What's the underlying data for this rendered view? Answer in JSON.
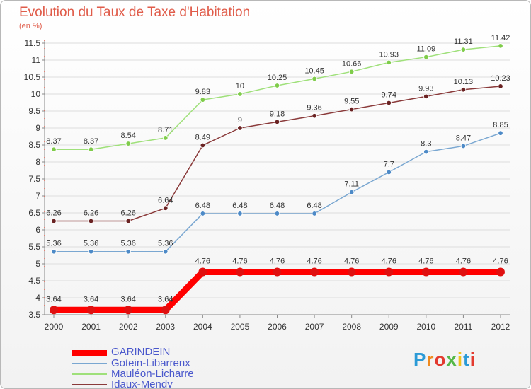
{
  "header": {
    "title": "Evolution du Taux de Taxe d'Habitation",
    "subtitle": "(en %)"
  },
  "logo": {
    "text": "Proxiti",
    "colors": [
      "#2b9ad6",
      "#f08a1e",
      "#e33a2f",
      "#55b848",
      "#f2c21b",
      "#2b9ad6",
      "#e33a2f"
    ]
  },
  "chart_data": {
    "type": "line",
    "categories": [
      "2000",
      "2001",
      "2002",
      "2003",
      "2004",
      "2005",
      "2006",
      "2007",
      "2008",
      "2009",
      "2010",
      "2011",
      "2012"
    ],
    "ylim": [
      3.5,
      11.5
    ],
    "yticks": [
      "3.5",
      "4",
      "4.5",
      "5",
      "5.5",
      "6",
      "6.5",
      "7",
      "7.5",
      "8",
      "8.5",
      "9",
      "9.5",
      "10",
      "10.5",
      "11",
      "11.5"
    ],
    "grid": "horizontal",
    "legend": "bottom-left",
    "series": [
      {
        "name": "GARINDEIN",
        "color": "#ff0000",
        "marker": "#e01010",
        "width": 9,
        "r": 6,
        "values": [
          3.64,
          3.64,
          3.64,
          3.64,
          4.76,
          4.76,
          4.76,
          4.76,
          4.76,
          4.76,
          4.76,
          4.76,
          4.76
        ],
        "labels": [
          "3.64",
          "3.64",
          "3.64",
          "3.64",
          "4.76",
          "4.76",
          "4.76",
          "4.76",
          "4.76",
          "4.76",
          "4.76",
          "4.76",
          "4.76"
        ]
      },
      {
        "name": "Gotein-Libarrenx",
        "color": "#7aa7d1",
        "marker": "#4d8ac7",
        "width": 1.5,
        "r": 3.3,
        "values": [
          5.36,
          5.36,
          5.36,
          5.36,
          6.48,
          6.48,
          6.48,
          6.48,
          7.11,
          7.7,
          8.3,
          8.47,
          8.85
        ],
        "labels": [
          "5.36",
          "5.36",
          "5.36",
          "5.36",
          "6.48",
          "6.48",
          "6.48",
          "6.48",
          "7.11",
          "7.7",
          "8.3",
          "8.47",
          "8.85"
        ]
      },
      {
        "name": "Mauléon-Licharre",
        "color": "#9fe07a",
        "marker": "#7fcc4a",
        "width": 1.5,
        "r": 3.3,
        "values": [
          8.37,
          8.37,
          8.54,
          8.71,
          9.83,
          10,
          10.25,
          10.45,
          10.66,
          10.93,
          11.09,
          11.31,
          11.42
        ],
        "labels": [
          "8.37",
          "8.37",
          "8.54",
          "8.71",
          "9.83",
          "10",
          "10.25",
          "10.45",
          "10.66",
          "10.93",
          "11.09",
          "11.31",
          "11.42"
        ]
      },
      {
        "name": "Idaux-Mendy",
        "color": "#8a3a3a",
        "marker": "#6a2222",
        "width": 1.5,
        "r": 3.3,
        "values": [
          6.26,
          6.26,
          6.26,
          6.64,
          8.49,
          9,
          9.18,
          9.36,
          9.55,
          9.74,
          9.93,
          10.13,
          10.23
        ],
        "labels": [
          "6.26",
          "6.26",
          "6.26",
          "6.64",
          "8.49",
          "9",
          "9.18",
          "9.36",
          "9.55",
          "9.74",
          "9.93",
          "10.13",
          "10.23"
        ]
      }
    ]
  }
}
